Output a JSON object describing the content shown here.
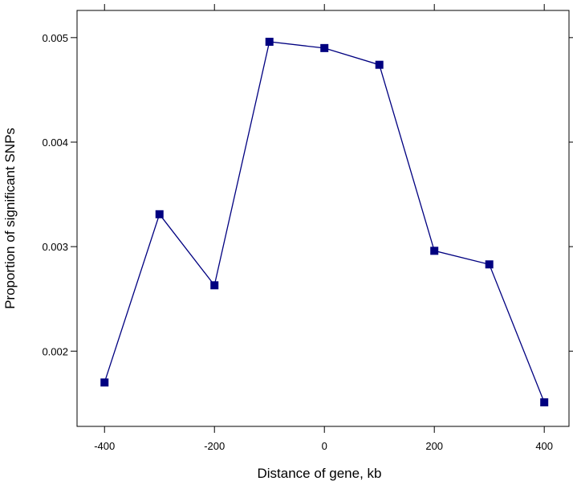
{
  "chart_data": {
    "type": "line",
    "xlabel": "Distance of gene, kb",
    "ylabel": "Proportion of significant SNPs",
    "xlim": [
      -450,
      445
    ],
    "ylim": [
      0.00128,
      0.00526
    ],
    "x_ticks": [
      -400,
      -200,
      0,
      200,
      400
    ],
    "x_tick_labels": [
      "-400",
      "-200",
      "0",
      "200",
      "400"
    ],
    "y_ticks": [
      0.002,
      0.003,
      0.004,
      0.005
    ],
    "y_tick_labels": [
      "0.002",
      "0.003",
      "0.004",
      "0.005"
    ],
    "grid": false,
    "marker": "square",
    "color": "#000080",
    "series": [
      {
        "x": [
          -400,
          -300,
          -200,
          -100,
          0,
          100,
          200,
          300,
          400
        ],
        "y": [
          0.0017,
          0.00331,
          0.00263,
          0.00496,
          0.0049,
          0.00474,
          0.00296,
          0.00283,
          0.00151
        ]
      }
    ]
  }
}
